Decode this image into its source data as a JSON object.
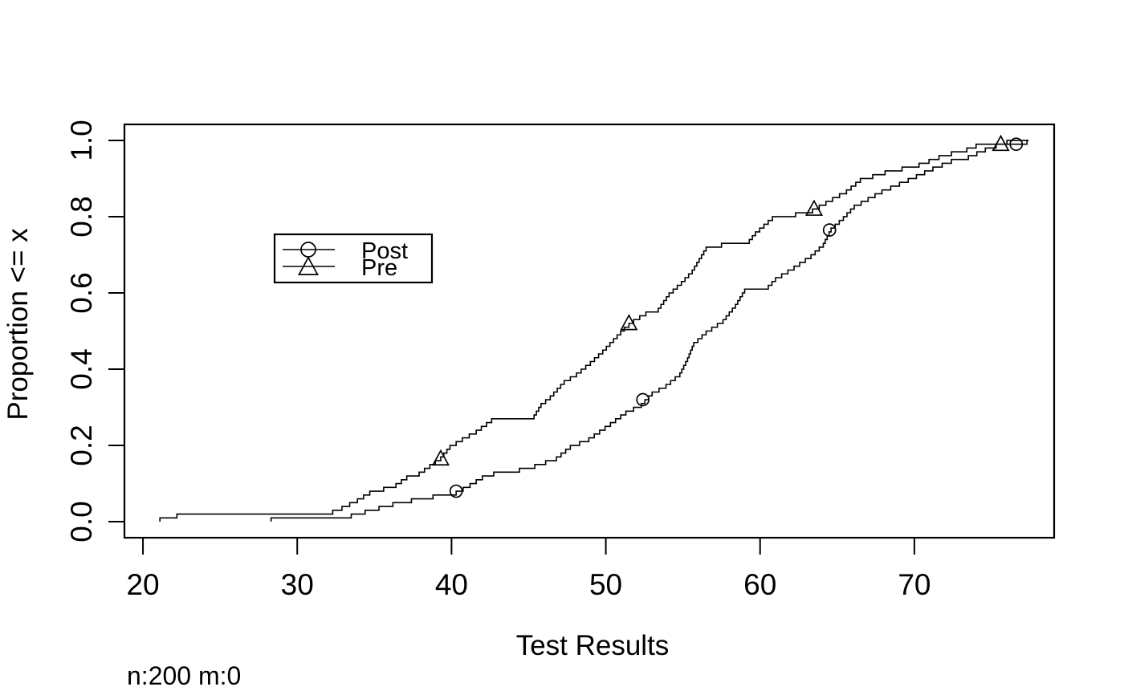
{
  "page": {
    "background": "#ffffff",
    "foreground": "#000000"
  },
  "chart_data": {
    "type": "line",
    "subtype": "ecdf-step",
    "title": "",
    "xlabel": "Test Results",
    "ylabel": "Proportion <= x",
    "note": "n:200 m:0",
    "grid": false,
    "xlim": [
      18.8,
      79.06
    ],
    "ylim": [
      -0.042,
      1.042
    ],
    "x_tick_values": [
      20,
      30,
      40,
      50,
      60,
      70
    ],
    "x_tick_labels": [
      "20",
      "30",
      "40",
      "50",
      "60",
      "70"
    ],
    "y_tick_values": [
      0.0,
      0.2,
      0.4,
      0.6,
      0.8,
      1.0
    ],
    "y_tick_labels": [
      "0.0",
      "0.2",
      "0.4",
      "0.6",
      "0.8",
      "1.0"
    ],
    "legend": {
      "position": "inside-upper-left",
      "entries": [
        {
          "label": "Post",
          "marker": "circle"
        },
        {
          "label": "Pre",
          "marker": "triangle"
        }
      ]
    },
    "series": [
      {
        "name": "Post",
        "marker": "circle",
        "color": "#000000",
        "n_points": 100,
        "step_size": 0.01,
        "end_extend_x": 77.4,
        "quantile_points": [
          [
            28.3,
            0.005
          ],
          [
            28.3,
            0.01
          ],
          [
            33.5,
            0.02
          ],
          [
            34.4,
            0.03
          ],
          [
            35.3,
            0.04
          ],
          [
            36.2,
            0.05
          ],
          [
            37.4,
            0.06
          ],
          [
            38.8,
            0.07
          ],
          [
            40.3,
            0.08
          ],
          [
            41.2,
            0.1
          ],
          [
            42.0,
            0.12
          ],
          [
            43.1,
            0.135
          ],
          [
            44.4,
            0.14
          ],
          [
            45.4,
            0.15
          ],
          [
            46.8,
            0.17
          ],
          [
            47.7,
            0.2
          ],
          [
            48.9,
            0.22
          ],
          [
            50.3,
            0.26
          ],
          [
            51.3,
            0.29
          ],
          [
            52.3,
            0.31
          ],
          [
            53.0,
            0.34
          ],
          [
            53.9,
            0.36
          ],
          [
            54.8,
            0.39
          ],
          [
            55.3,
            0.43
          ],
          [
            55.7,
            0.47
          ],
          [
            56.5,
            0.5
          ],
          [
            57.6,
            0.53
          ],
          [
            58.4,
            0.57
          ],
          [
            59.0,
            0.61
          ],
          [
            60.3,
            0.61
          ],
          [
            61.0,
            0.64
          ],
          [
            62.2,
            0.67
          ],
          [
            63.3,
            0.7
          ],
          [
            64.1,
            0.73
          ],
          [
            64.6,
            0.77
          ],
          [
            65.4,
            0.8
          ],
          [
            66.1,
            0.83
          ],
          [
            67.9,
            0.87
          ],
          [
            69.6,
            0.9
          ],
          [
            71.2,
            0.93
          ],
          [
            72.4,
            0.95
          ],
          [
            73.5,
            0.96
          ],
          [
            74.6,
            0.98
          ],
          [
            75.3,
            0.99
          ],
          [
            77.3,
            1.0
          ]
        ],
        "marker_points": [
          [
            40.3,
            0.08
          ],
          [
            52.4,
            0.32
          ],
          [
            64.5,
            0.765
          ],
          [
            76.6,
            0.99
          ]
        ]
      },
      {
        "name": "Pre",
        "marker": "triangle",
        "color": "#000000",
        "n_points": 100,
        "step_size": 0.01,
        "end_extend_x": 77.4,
        "quantile_points": [
          [
            21.1,
            0.005
          ],
          [
            21.1,
            0.01
          ],
          [
            22.2,
            0.02
          ],
          [
            31.6,
            0.02
          ],
          [
            32.3,
            0.03
          ],
          [
            32.9,
            0.04
          ],
          [
            33.4,
            0.05
          ],
          [
            33.9,
            0.06
          ],
          [
            34.7,
            0.08
          ],
          [
            35.6,
            0.09
          ],
          [
            36.4,
            0.1
          ],
          [
            37.1,
            0.12
          ],
          [
            37.9,
            0.13
          ],
          [
            38.6,
            0.15
          ],
          [
            39.3,
            0.17
          ],
          [
            39.9,
            0.2
          ],
          [
            40.7,
            0.22
          ],
          [
            41.6,
            0.24
          ],
          [
            42.6,
            0.27
          ],
          [
            45.2,
            0.27
          ],
          [
            45.8,
            0.31
          ],
          [
            46.4,
            0.33
          ],
          [
            47.3,
            0.37
          ],
          [
            48.1,
            0.39
          ],
          [
            49.0,
            0.42
          ],
          [
            49.8,
            0.45
          ],
          [
            50.5,
            0.48
          ],
          [
            51.2,
            0.51
          ],
          [
            51.8,
            0.53
          ],
          [
            52.6,
            0.55
          ],
          [
            53.4,
            0.56
          ],
          [
            54.1,
            0.6
          ],
          [
            54.9,
            0.63
          ],
          [
            55.6,
            0.66
          ],
          [
            56.2,
            0.7
          ],
          [
            56.5,
            0.72
          ],
          [
            57.5,
            0.73
          ],
          [
            59.1,
            0.73
          ],
          [
            59.7,
            0.76
          ],
          [
            60.8,
            0.8
          ],
          [
            62.3,
            0.81
          ],
          [
            63.4,
            0.82
          ],
          [
            64.7,
            0.85
          ],
          [
            65.6,
            0.87
          ],
          [
            66.5,
            0.9
          ],
          [
            68.1,
            0.92
          ],
          [
            69.2,
            0.93
          ],
          [
            70.3,
            0.94
          ],
          [
            71.6,
            0.96
          ],
          [
            72.4,
            0.97
          ],
          [
            73.4,
            0.98
          ],
          [
            74.0,
            0.99
          ],
          [
            76.0,
            1.0
          ]
        ],
        "marker_points": [
          [
            39.3,
            0.165
          ],
          [
            51.5,
            0.52
          ],
          [
            63.5,
            0.82
          ],
          [
            75.6,
            0.99
          ]
        ]
      }
    ]
  }
}
